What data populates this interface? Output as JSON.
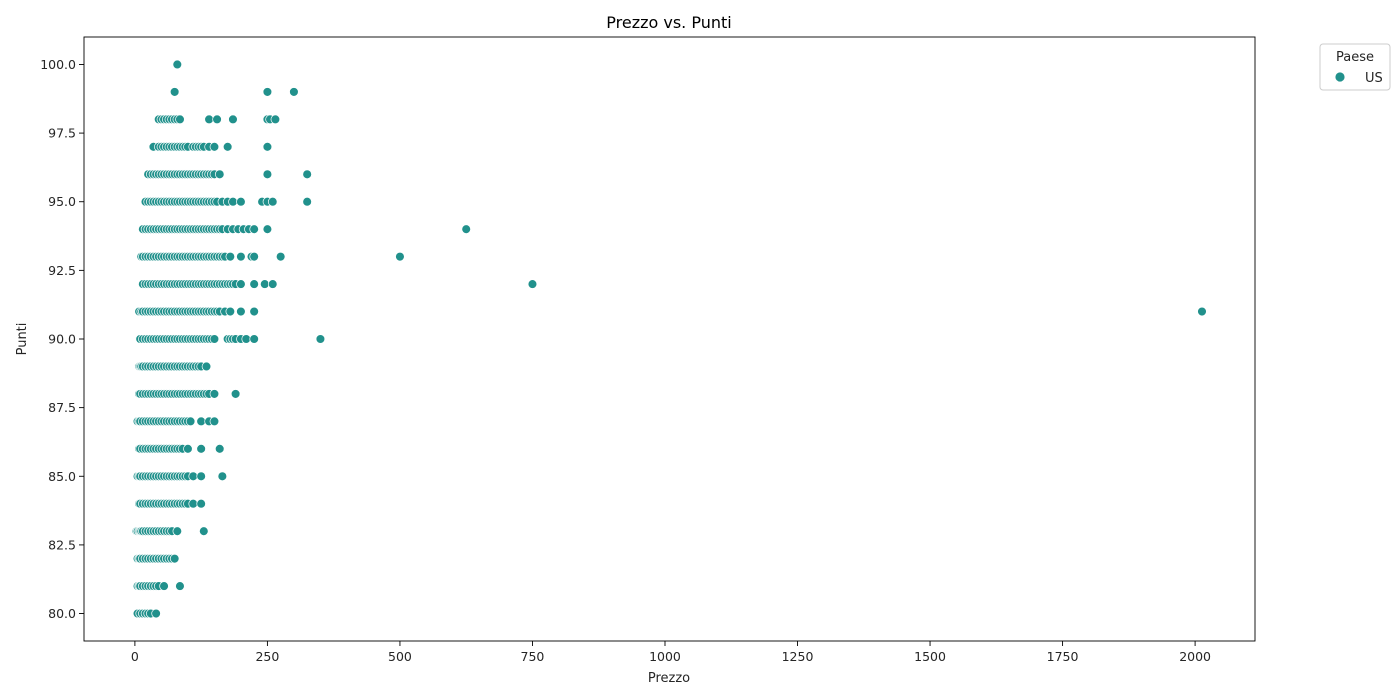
{
  "chart_data": {
    "type": "scatter",
    "title": "Prezzo vs. Punti",
    "xlabel": "Prezzo",
    "ylabel": "Punti",
    "xlim": [
      -96,
      2113
    ],
    "ylim": [
      79.0,
      101.0
    ],
    "xticks": [
      0,
      250,
      500,
      750,
      1000,
      1250,
      1500,
      1750,
      2000
    ],
    "yticks": [
      80.0,
      82.5,
      85.0,
      87.5,
      90.0,
      92.5,
      95.0,
      97.5,
      100.0
    ],
    "xtick_labels": [
      "0",
      "250",
      "500",
      "750",
      "1000",
      "1250",
      "1500",
      "1750",
      "2000"
    ],
    "ytick_labels": [
      "80.0",
      "82.5",
      "85.0",
      "87.5",
      "90.0",
      "92.5",
      "95.0",
      "97.5",
      "100.0"
    ],
    "grid": false,
    "legend": {
      "title": "Paese",
      "placement": "top-right-outside",
      "entries": [
        "US"
      ]
    },
    "colors": {
      "US": "#21918c"
    },
    "series": [
      {
        "name": "US",
        "rows": [
          {
            "y": 100,
            "x": [
              80
            ]
          },
          {
            "y": 99,
            "x": [
              75,
              250,
              300
            ]
          },
          {
            "y": 98,
            "x": [
              45,
              50,
              55,
              60,
              65,
              70,
              75,
              80,
              85,
              140,
              155,
              185,
              250,
              255,
              265
            ]
          },
          {
            "y": 97,
            "x": [
              35,
              45,
              50,
              55,
              60,
              65,
              70,
              75,
              80,
              85,
              90,
              95,
              100,
              110,
              115,
              120,
              125,
              130,
              140,
              150,
              175,
              250
            ]
          },
          {
            "y": 96,
            "x": [
              25,
              30,
              35,
              40,
              45,
              50,
              55,
              60,
              65,
              70,
              75,
              80,
              85,
              90,
              95,
              100,
              105,
              110,
              115,
              120,
              125,
              130,
              135,
              140,
              145,
              150,
              160,
              250,
              325
            ]
          },
          {
            "y": 95,
            "x": [
              20,
              25,
              30,
              35,
              40,
              45,
              50,
              55,
              60,
              65,
              70,
              75,
              80,
              85,
              90,
              95,
              100,
              105,
              110,
              115,
              120,
              125,
              130,
              135,
              140,
              145,
              150,
              155,
              165,
              175,
              185,
              200,
              240,
              250,
              260,
              325
            ]
          },
          {
            "y": 94,
            "x": [
              15,
              20,
              25,
              30,
              35,
              40,
              45,
              50,
              55,
              60,
              65,
              70,
              75,
              80,
              85,
              90,
              95,
              100,
              105,
              110,
              115,
              120,
              125,
              130,
              135,
              140,
              145,
              150,
              155,
              160,
              165,
              175,
              185,
              195,
              205,
              215,
              225,
              250,
              625
            ]
          },
          {
            "y": 93,
            "x": [
              12,
              15,
              20,
              25,
              30,
              35,
              40,
              45,
              50,
              55,
              60,
              65,
              70,
              75,
              80,
              85,
              90,
              95,
              100,
              105,
              110,
              115,
              120,
              125,
              130,
              135,
              140,
              145,
              150,
              155,
              160,
              165,
              170,
              180,
              200,
              220,
              225,
              275,
              500
            ]
          },
          {
            "y": 92,
            "x": [
              15,
              20,
              25,
              30,
              35,
              40,
              45,
              50,
              55,
              60,
              65,
              70,
              75,
              80,
              85,
              90,
              95,
              100,
              105,
              110,
              115,
              120,
              125,
              130,
              135,
              140,
              145,
              150,
              155,
              160,
              165,
              170,
              175,
              180,
              185,
              190,
              200,
              225,
              245,
              260,
              750
            ]
          },
          {
            "y": 91,
            "x": [
              8,
              12,
              15,
              20,
              25,
              30,
              35,
              40,
              45,
              50,
              55,
              60,
              65,
              70,
              75,
              80,
              85,
              90,
              95,
              100,
              105,
              110,
              115,
              120,
              125,
              130,
              135,
              140,
              145,
              150,
              155,
              160,
              170,
              180,
              200,
              225,
              2013
            ]
          },
          {
            "y": 90,
            "x": [
              10,
              15,
              20,
              25,
              30,
              35,
              40,
              45,
              50,
              55,
              60,
              65,
              70,
              75,
              80,
              85,
              90,
              95,
              100,
              105,
              110,
              115,
              120,
              125,
              130,
              135,
              140,
              145,
              150,
              175,
              180,
              185,
              190,
              200,
              210,
              225,
              350
            ]
          },
          {
            "y": 89,
            "x": [
              8,
              10,
              12,
              15,
              20,
              25,
              30,
              35,
              40,
              45,
              50,
              55,
              60,
              65,
              70,
              75,
              80,
              85,
              90,
              95,
              100,
              105,
              110,
              115,
              120,
              125,
              135
            ]
          },
          {
            "y": 88,
            "x": [
              8,
              10,
              15,
              20,
              25,
              30,
              35,
              40,
              45,
              50,
              55,
              60,
              65,
              70,
              75,
              80,
              85,
              90,
              95,
              100,
              105,
              110,
              115,
              120,
              125,
              130,
              135,
              140,
              150,
              190
            ]
          },
          {
            "y": 87,
            "x": [
              5,
              8,
              10,
              15,
              20,
              25,
              30,
              35,
              40,
              45,
              50,
              55,
              60,
              65,
              70,
              75,
              80,
              85,
              90,
              95,
              100,
              105,
              125,
              140,
              150
            ]
          },
          {
            "y": 86,
            "x": [
              8,
              10,
              15,
              20,
              25,
              30,
              35,
              40,
              45,
              50,
              55,
              60,
              65,
              70,
              75,
              80,
              85,
              90,
              100,
              125,
              160
            ]
          },
          {
            "y": 85,
            "x": [
              5,
              8,
              10,
              15,
              20,
              25,
              30,
              35,
              40,
              45,
              50,
              55,
              60,
              65,
              70,
              75,
              80,
              85,
              90,
              95,
              100,
              110,
              125,
              165
            ]
          },
          {
            "y": 84,
            "x": [
              8,
              10,
              15,
              20,
              25,
              30,
              35,
              40,
              45,
              50,
              55,
              60,
              65,
              70,
              75,
              80,
              85,
              90,
              95,
              100,
              110,
              125
            ]
          },
          {
            "y": 83,
            "x": [
              3,
              5,
              8,
              10,
              12,
              15,
              20,
              25,
              30,
              35,
              40,
              45,
              50,
              55,
              60,
              65,
              70,
              80,
              130
            ]
          },
          {
            "y": 82,
            "x": [
              5,
              8,
              10,
              15,
              20,
              25,
              30,
              35,
              40,
              45,
              50,
              55,
              60,
              65,
              70,
              75
            ]
          },
          {
            "y": 81,
            "x": [
              5,
              8,
              10,
              15,
              20,
              25,
              30,
              35,
              40,
              45,
              55,
              85
            ]
          },
          {
            "y": 80,
            "x": [
              5,
              10,
              15,
              20,
              25,
              30,
              40
            ]
          }
        ]
      }
    ]
  }
}
